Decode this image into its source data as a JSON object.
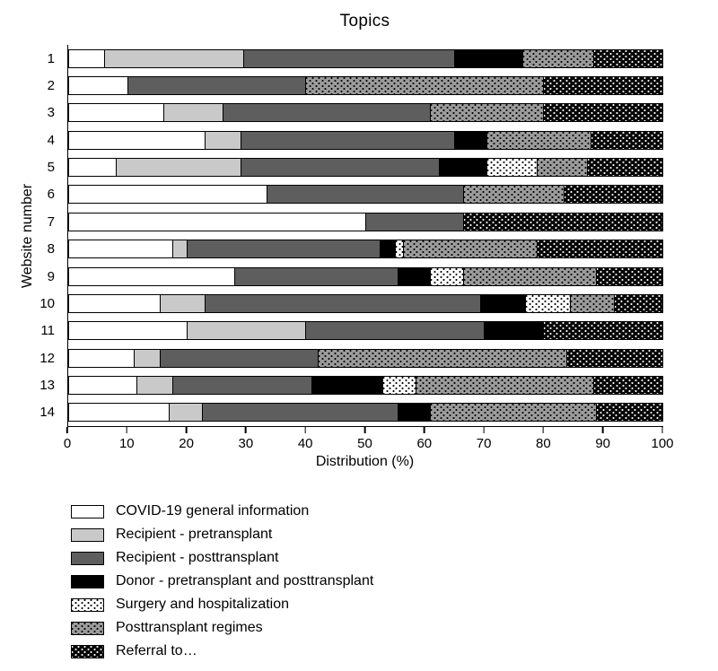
{
  "chart_data": {
    "type": "bar",
    "variant": "horizontal-stacked",
    "title": "Topics",
    "xlabel": "Distribution (%)",
    "ylabel": "Website number",
    "xlim": [
      0,
      100
    ],
    "xticks": [
      0,
      10,
      20,
      30,
      40,
      50,
      60,
      70,
      80,
      90,
      100
    ],
    "grid": false,
    "legend_position": "bottom-left",
    "categories": [
      "1",
      "2",
      "3",
      "4",
      "5",
      "6",
      "7",
      "8",
      "9",
      "10",
      "11",
      "12",
      "13",
      "14"
    ],
    "series": [
      {
        "name": "COVID-19 general information",
        "fill": "#ffffff",
        "pattern": "none",
        "values": [
          6,
          10,
          16,
          23,
          8,
          33.5,
          50,
          17.5,
          28,
          15.5,
          20,
          11,
          11.5,
          17
        ]
      },
      {
        "name": "Recipient - pretransplant",
        "fill": "#c9c9c9",
        "pattern": "none",
        "values": [
          23.5,
          0,
          10,
          6,
          21,
          0,
          0,
          2.5,
          0,
          7.5,
          20,
          4.5,
          6,
          5.5
        ]
      },
      {
        "name": "Recipient - posttransplant",
        "fill": "#5e5e5e",
        "pattern": "none",
        "values": [
          35.5,
          30,
          35,
          36,
          33.5,
          33,
          16.5,
          32.5,
          27.5,
          46.5,
          30,
          26.5,
          23.5,
          33
        ]
      },
      {
        "name": "Donor - pretransplant and posttransplant",
        "fill": "#000000",
        "pattern": "none",
        "values": [
          11.5,
          0,
          0,
          5.5,
          8,
          0,
          0,
          2.5,
          5.5,
          7.5,
          10,
          0,
          12,
          5.5
        ]
      },
      {
        "name": "Surgery and hospitalization",
        "fill": "#ffffff",
        "pattern": "dots-dark",
        "values": [
          0,
          0,
          0,
          0,
          8.5,
          0,
          0,
          1.5,
          5.5,
          7.5,
          0,
          0,
          5.5,
          0
        ]
      },
      {
        "name": "Posttransplant regimes",
        "fill": "#9b9b9b",
        "pattern": "dots-dark",
        "values": [
          12,
          40,
          19,
          17.5,
          8.5,
          17,
          0,
          22.5,
          22.5,
          7.5,
          0,
          42,
          30,
          28
        ]
      },
      {
        "name": "Referral to…",
        "fill": "#050505",
        "pattern": "dots-light",
        "values": [
          11.5,
          20,
          20,
          12,
          12.5,
          16.5,
          33.5,
          21,
          11,
          8,
          20,
          16,
          11.5,
          11
        ]
      }
    ]
  }
}
